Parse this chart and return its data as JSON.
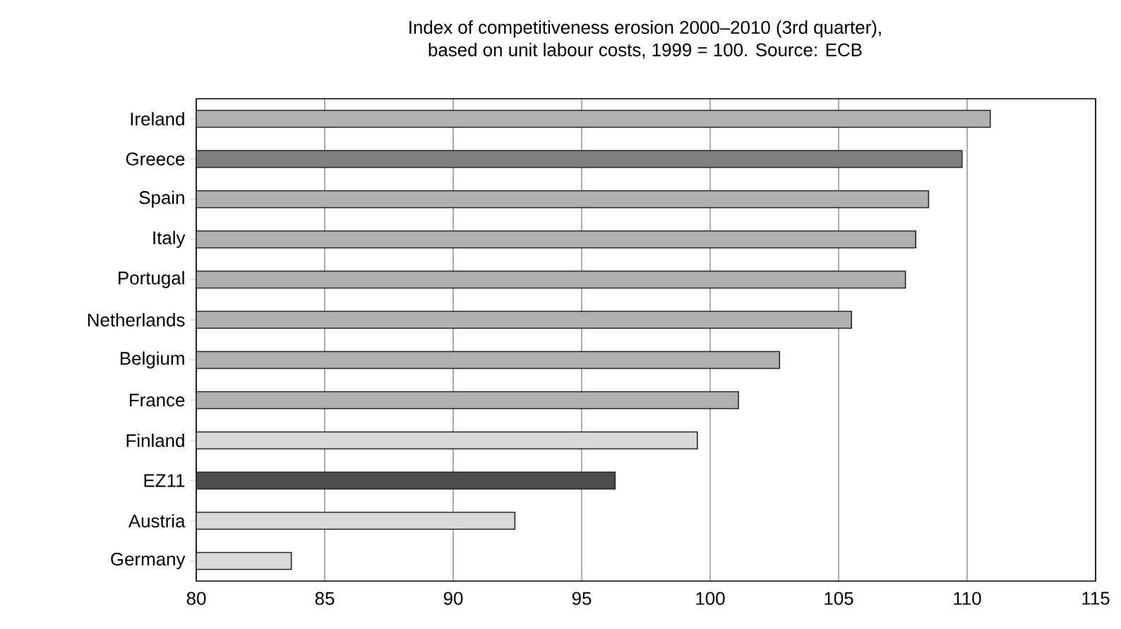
{
  "chart_data": {
    "type": "bar",
    "orientation": "horizontal",
    "title": "Index of competitiveness erosion 2000–2010 (3rd quarter),\nbased on unit labour costs, 1999 = 100. Source: ECB",
    "categories": [
      "Ireland",
      "Greece",
      "Spain",
      "Italy",
      "Portugal",
      "Netherlands",
      "Belgium",
      "France",
      "Finland",
      "EZ11",
      "Austria",
      "Germany"
    ],
    "values": [
      110.9,
      109.8,
      108.5,
      108.0,
      107.6,
      105.5,
      102.7,
      101.1,
      99.5,
      96.3,
      92.4,
      83.7
    ],
    "colors": [
      "#b0b0b0",
      "#808080",
      "#b0b0b0",
      "#b0b0b0",
      "#b0b0b0",
      "#b0b0b0",
      "#b0b0b0",
      "#b0b0b0",
      "#d9d9d9",
      "#4d4d4d",
      "#d9d9d9",
      "#d9d9d9"
    ],
    "xlim": [
      80,
      115
    ],
    "xticks": [
      80,
      85,
      90,
      95,
      100,
      105,
      110,
      115
    ],
    "grid": "x"
  }
}
